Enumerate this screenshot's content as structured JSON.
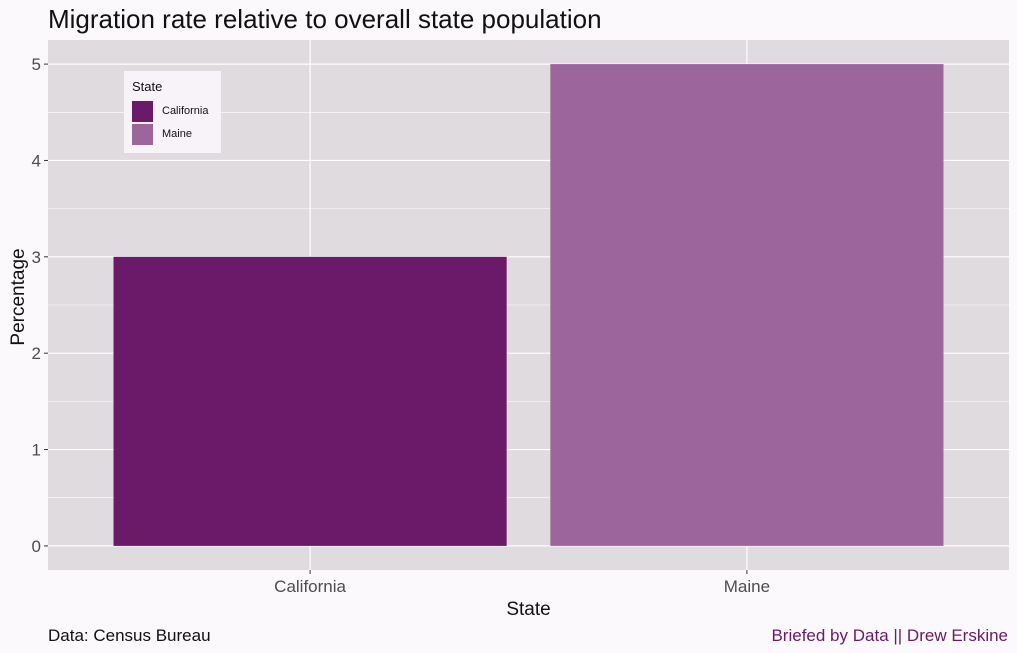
{
  "chart_data": {
    "type": "bar",
    "title": "Migration rate relative to overall state population",
    "xlabel": "State",
    "ylabel": "Percentage",
    "categories": [
      "California",
      "Maine"
    ],
    "values": [
      3,
      5
    ],
    "bar_colors": [
      "#6a1a68",
      "#9c669c"
    ],
    "ylim": [
      -0.25,
      5.25
    ],
    "yticks": [
      0,
      1,
      2,
      3,
      4,
      5
    ],
    "grid": true,
    "panel_color": "#dfdbdf",
    "legend": {
      "title": "State",
      "placement": "top-left",
      "entries": [
        {
          "label": "California",
          "color": "#6a1a68"
        },
        {
          "label": "Maine",
          "color": "#9c669c"
        }
      ]
    }
  },
  "caption": {
    "left": "Data: Census Bureau",
    "right": "Briefed by Data || Drew Erskine",
    "right_color": "#6a1a68"
  }
}
